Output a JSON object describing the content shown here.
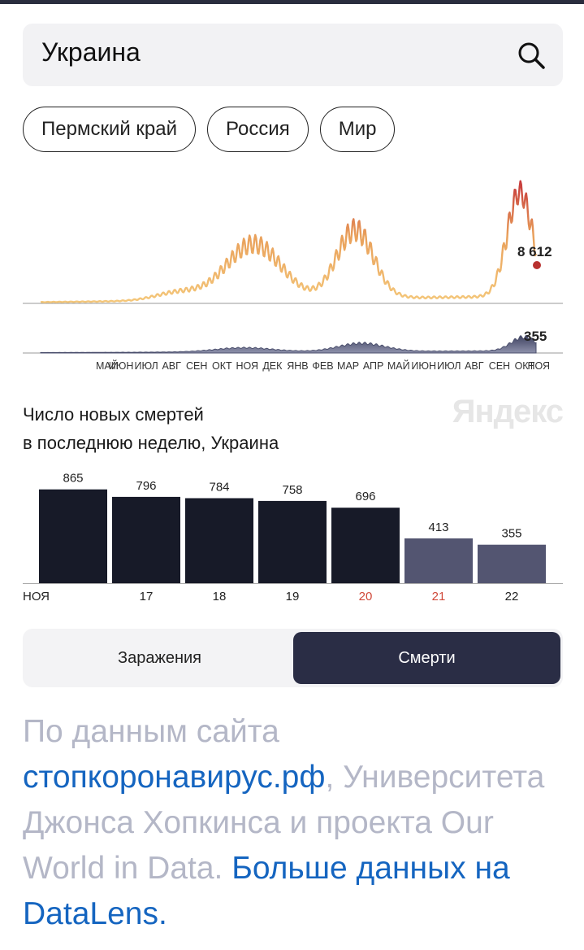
{
  "search": {
    "query": "Украина"
  },
  "chips": [
    "Пермский край",
    "Россия",
    "Мир"
  ],
  "trend": {
    "cases_latest": "8 612",
    "deaths_latest": "355",
    "months": [
      "МАЙ",
      "ИЮН",
      "ИЮЛ",
      "АВГ",
      "СЕН",
      "ОКТ",
      "НОЯ",
      "ДЕК",
      "ЯНВ",
      "ФЕВ",
      "МАР",
      "АПР",
      "МАЙ",
      "ИЮН",
      "ИЮЛ",
      "АВГ",
      "СЕН",
      "ОКТ",
      "НОЯ"
    ]
  },
  "chart_title_line1": "Число новых смертей",
  "chart_title_line2": "в последнюю неделю, Украина",
  "logo": "Яндекс",
  "chart_data": {
    "type": "bar",
    "title": "Число новых смертей в последнюю неделю, Украина",
    "categories": [
      "НОЯ",
      "17",
      "18",
      "19",
      "20",
      "21",
      "22"
    ],
    "values": [
      865,
      796,
      784,
      758,
      696,
      413,
      355
    ],
    "weekend": [
      false,
      false,
      false,
      false,
      true,
      true,
      false
    ],
    "partial": [
      false,
      false,
      false,
      false,
      false,
      true,
      true
    ],
    "ylim": [
      0,
      900
    ]
  },
  "colors": {
    "bar_main": "#171a28",
    "bar_light": "#535571",
    "weekend_label": "#d0493a"
  },
  "toggle": {
    "infections": "Заражения",
    "deaths": "Смерти"
  },
  "source": {
    "prefix": "По данным сайта",
    "link1": "стопкоронавирус.рф",
    "middle": ", Университета Джонса Хопкинса и проекта Our World in Data.",
    "link2": "Больше данных на DataLens."
  }
}
